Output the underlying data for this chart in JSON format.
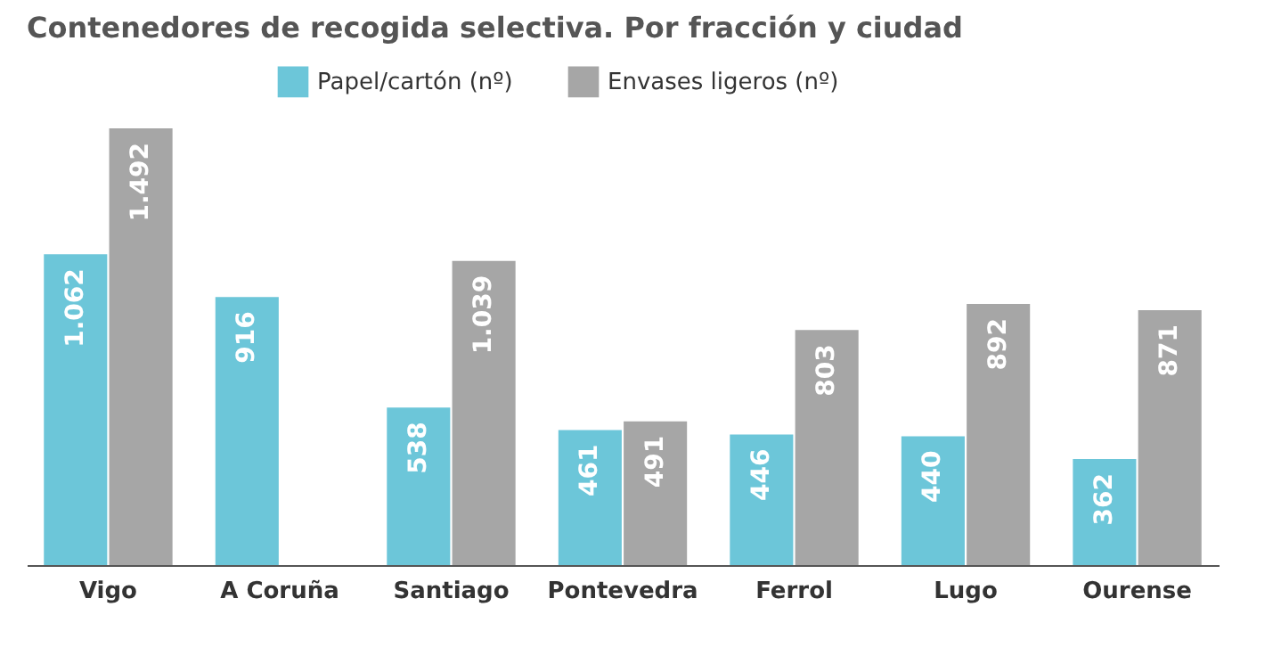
{
  "chart_data": {
    "type": "bar",
    "title": "Contenedores de recogida selectiva. Por fracción y ciudad",
    "categories": [
      "Vigo",
      "A Coruña",
      "Santiago",
      "Pontevedra",
      "Ferrol",
      "Lugo",
      "Ourense"
    ],
    "series": [
      {
        "name": "Papel/cartón (nº)",
        "color": "#6cc6d9",
        "values": [
          1062,
          916,
          538,
          461,
          446,
          440,
          362
        ],
        "value_labels": [
          "1.062",
          "916",
          "538",
          "461",
          "446",
          "440",
          "362"
        ]
      },
      {
        "name": "Envases ligeros (nº)",
        "color": "#a6a6a6",
        "values": [
          1492,
          null,
          1039,
          491,
          803,
          892,
          871
        ],
        "value_labels": [
          "1.492",
          null,
          "1.039",
          "491",
          "803",
          "892",
          "871"
        ]
      }
    ],
    "legend": "top"
  }
}
